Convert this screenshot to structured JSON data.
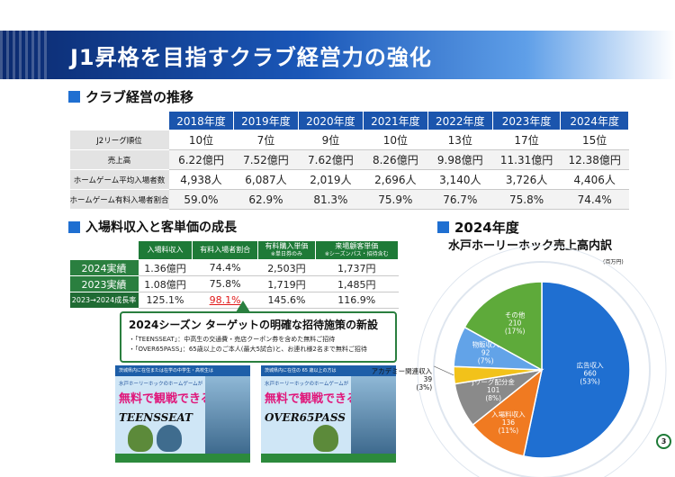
{
  "title": "J1昇格を目指すクラブ経営力の強化",
  "section1": {
    "heading": "クラブ経営の推移",
    "years": [
      "2018年度",
      "2019年度",
      "2020年度",
      "2021年度",
      "2022年度",
      "2023年度",
      "2024年度"
    ],
    "rows": [
      {
        "label": "J2リーグ順位",
        "values": [
          "10位",
          "7位",
          "9位",
          "10位",
          "13位",
          "17位",
          "15位"
        ]
      },
      {
        "label": "売上高",
        "values": [
          "6.22億円",
          "7.52億円",
          "7.62億円",
          "8.26億円",
          "9.98億円",
          "11.31億円",
          "12.38億円"
        ]
      },
      {
        "label": "ホームゲーム平均入場者数",
        "values": [
          "4,938人",
          "6,087人",
          "2,019人",
          "2,696人",
          "3,140人",
          "3,726人",
          "4,406人"
        ]
      },
      {
        "label": "ホームゲーム有料入場者割合",
        "values": [
          "59.0%",
          "62.9%",
          "81.3%",
          "75.9%",
          "76.7%",
          "75.8%",
          "74.4%"
        ]
      }
    ]
  },
  "section2": {
    "heading": "入場料収入と客単価の成長",
    "columns": [
      {
        "label": "入場料収入",
        "sub": ""
      },
      {
        "label": "有料入場者割合",
        "sub": ""
      },
      {
        "label": "有料購入単価",
        "sub": "※単日券のみ"
      },
      {
        "label": "来場顧客単価",
        "sub": "※シーズンパス・招待含む"
      }
    ],
    "rows": [
      {
        "label": "2024実績",
        "values": [
          "1.36億円",
          "74.4%",
          "2,503円",
          "1,737円"
        ]
      },
      {
        "label": "2023実績",
        "values": [
          "1.08億円",
          "75.8%",
          "1,719円",
          "1,485円"
        ]
      },
      {
        "label": "2023→2024成長率",
        "values": [
          "125.1%",
          "98.1%",
          "145.6%",
          "116.9%"
        ]
      }
    ]
  },
  "callout": {
    "title": "2024シーズン ターゲットの明確な招待施策の新設",
    "line1": "・「TEENSSEAT」：中高生の交通費・売店クーポン券を含めた無料ご招待",
    "line2": "・「OVER65PASS」：65歳以上のご本人(最大5試合)と、お連れ様2名まで無料ご招待"
  },
  "posters": [
    {
      "header": "茨城県内に在住または在学の中学生・高校生は",
      "sub": "水戸ホーリーホックのホームゲームが",
      "free": "無料で観戦できる。",
      "logo": "TEENSSEAT"
    },
    {
      "header": "茨城県内に在住の 65 歳以上の方は",
      "sub": "水戸ホーリーホックのホームゲームが",
      "free": "無料で観戦できる",
      "logo": "OVER65PASS"
    }
  ],
  "chart_title": "2024年度",
  "chart_subtitle": "水戸ホーリーホック売上高内訳",
  "chart_unit": "(百万円)",
  "chart_data": {
    "type": "pie",
    "title": "水戸ホーリーホック売上高内訳",
    "unit": "百万円",
    "slices": [
      {
        "name": "広告収入",
        "value": 660,
        "pct": "53%",
        "color": "#1f6fd1"
      },
      {
        "name": "入場料収入",
        "value": 136,
        "pct": "11%",
        "color": "#f07a21"
      },
      {
        "name": "Jリーグ配分金",
        "value": 101,
        "pct": "8%",
        "color": "#8a8a8a"
      },
      {
        "name": "アカデミー関連収入",
        "value": 39,
        "pct": "3%",
        "color": "#f2c21a"
      },
      {
        "name": "物販収入",
        "value": 92,
        "pct": "7%",
        "color": "#62a3e8"
      },
      {
        "name": "その他",
        "value": 210,
        "pct": "17%",
        "color": "#5eaa3a"
      }
    ]
  },
  "page_number": "3"
}
